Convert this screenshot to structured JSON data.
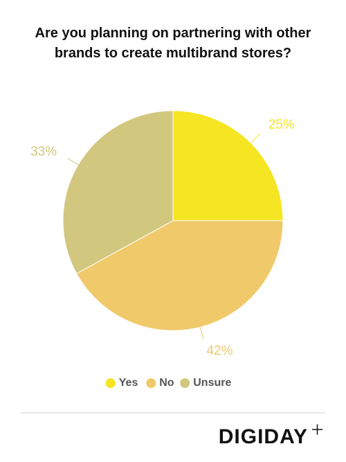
{
  "chart_data": {
    "type": "pie",
    "title": "Are you planning on partnering with other brands to create multibrand stores?",
    "categories": [
      "Yes",
      "No",
      "Unsure"
    ],
    "values": [
      25,
      42,
      33
    ],
    "value_labels": [
      "25%",
      "42%",
      "33%"
    ],
    "colors": [
      "#f5e523",
      "#f0c96b",
      "#d1c77e"
    ],
    "legend": "bottom"
  },
  "footer": {
    "brand": "DIGIDAY"
  }
}
